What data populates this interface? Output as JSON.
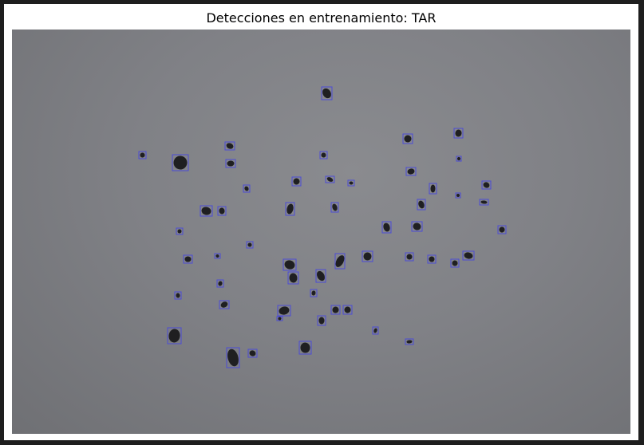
{
  "figure": {
    "title": "Detecciones en entrenamiento: TAR"
  },
  "colors": {
    "box": "#4b4bd6",
    "particle": "#1f1f21",
    "background": "#818286"
  },
  "detections": {
    "count": 60
  }
}
